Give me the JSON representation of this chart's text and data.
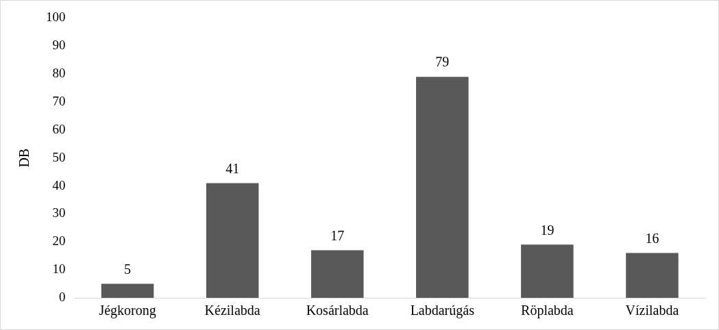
{
  "chart_data": {
    "type": "bar",
    "ylabel": "DB",
    "categories": [
      "Jégkorong",
      "Kézilabda",
      "Kosárlabda",
      "Labdarúgás",
      "Röplabda",
      "Vízilabda"
    ],
    "values": [
      5,
      41,
      17,
      79,
      19,
      16
    ],
    "color": "#595959",
    "ylim": [
      0,
      100
    ],
    "yticks": [
      0,
      10,
      20,
      30,
      40,
      50,
      60,
      70,
      80,
      90,
      100
    ],
    "grid": false,
    "legend": false,
    "data_labels": true
  }
}
